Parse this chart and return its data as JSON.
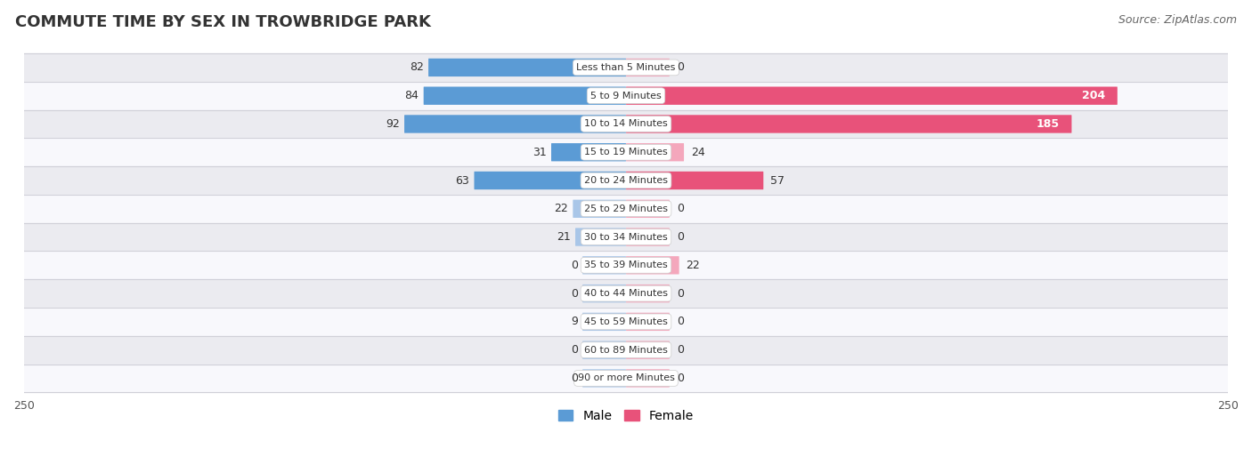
{
  "title": "COMMUTE TIME BY SEX IN TROWBRIDGE PARK",
  "source": "Source: ZipAtlas.com",
  "categories": [
    "Less than 5 Minutes",
    "5 to 9 Minutes",
    "10 to 14 Minutes",
    "15 to 19 Minutes",
    "20 to 24 Minutes",
    "25 to 29 Minutes",
    "30 to 34 Minutes",
    "35 to 39 Minutes",
    "40 to 44 Minutes",
    "45 to 59 Minutes",
    "60 to 89 Minutes",
    "90 or more Minutes"
  ],
  "male_values": [
    82,
    84,
    92,
    31,
    63,
    22,
    21,
    0,
    0,
    9,
    0,
    0
  ],
  "female_values": [
    0,
    204,
    185,
    24,
    57,
    0,
    0,
    22,
    0,
    0,
    0,
    0
  ],
  "male_color_strong": "#5b9bd5",
  "male_color_light": "#a9c6e8",
  "female_color_strong": "#e8527a",
  "female_color_light": "#f4a7bc",
  "xlim": 250,
  "min_bar": 18,
  "row_bg_light": "#ebebf0",
  "row_bg_white": "#f8f8fc",
  "title_fontsize": 13,
  "source_fontsize": 9,
  "bar_label_fontsize": 9,
  "category_fontsize": 8,
  "legend_fontsize": 10,
  "axis_label_fontsize": 9,
  "strong_threshold": 30
}
